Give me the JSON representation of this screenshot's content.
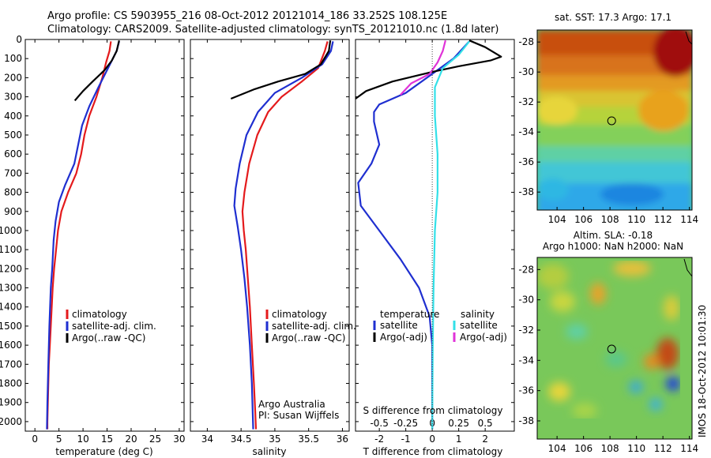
{
  "header": {
    "line1": "Argo profile: CS 5903955_216 08-Oct-2012 20121014_186 33.252S 108.125E",
    "line2": "Climatology: CARS2009. Satellite-adjusted climatology: synTS_20121010.nc (1.8d later)"
  },
  "colors": {
    "climatology": "#e41a1c",
    "satellite": "#1f2fd0",
    "argo": "#000000",
    "sal_sat": "#33e0e8",
    "sal_argo": "#e033d8",
    "dotted": "#444444"
  },
  "panels": {
    "temperature": {
      "xlabel": "temperature (deg C)",
      "legend": [
        "climatology",
        "satellite-adj. clim.",
        "Argo(..raw -QC)"
      ]
    },
    "salinity": {
      "xlabel": "salinity",
      "legend": [
        "climatology",
        "satellite-adj. clim.",
        "Argo(..raw -QC)"
      ],
      "note1": "Argo Australia",
      "note2": "PI: Susan Wijffels"
    },
    "difference": {
      "xlabel_bottom": "T difference from climatology",
      "xlabel_top": "S difference from climatology",
      "legend_temp_title": "temperature",
      "legend_sal_title": "salinity",
      "legend_temp": [
        "satellite",
        "Argo(-adj)"
      ],
      "legend_sal": [
        "satellite",
        "Argo(-adj)"
      ]
    }
  },
  "maps": {
    "sst_title": "sat. SST: 17.3 Argo: 17.1",
    "sla_title1": "Altim. SLA: -0.18",
    "sla_title2": "Argo h1000: NaN h2000: NaN",
    "timestamp": "IMOS 18-Oct-2012 10:01:30",
    "lon_ticks": [
      "104",
      "106",
      "108",
      "110",
      "112",
      "114"
    ],
    "lat_ticks": [
      "-28",
      "-30",
      "-32",
      "-34",
      "-36",
      "-38"
    ],
    "profile_lon": 108.125,
    "profile_lat": -33.252
  },
  "chart_data": [
    {
      "type": "line",
      "name": "temperature",
      "xlabel": "temperature (deg C)",
      "ylabel": "",
      "xlim": [
        -2,
        31
      ],
      "ylim": [
        2050,
        0
      ],
      "x_ticks": [
        0,
        5,
        10,
        15,
        20,
        25,
        30
      ],
      "y_ticks": [
        0,
        100,
        200,
        300,
        400,
        500,
        600,
        700,
        800,
        900,
        1000,
        1100,
        1200,
        1300,
        1400,
        1500,
        1600,
        1700,
        1800,
        1900,
        2000
      ],
      "legend": [
        "climatology",
        "satellite-adj. clim.",
        "Argo(..raw -QC)"
      ],
      "series": [
        {
          "name": "climatology",
          "color": "#e41a1c",
          "points": [
            [
              15.8,
              10
            ],
            [
              15.5,
              60
            ],
            [
              14.8,
              120
            ],
            [
              14.0,
              200
            ],
            [
              12.8,
              300
            ],
            [
              11.3,
              400
            ],
            [
              10.3,
              500
            ],
            [
              9.6,
              600
            ],
            [
              8.6,
              700
            ],
            [
              6.9,
              800
            ],
            [
              5.5,
              900
            ],
            [
              4.8,
              1000
            ],
            [
              4.4,
              1100
            ],
            [
              4.0,
              1200
            ],
            [
              3.7,
              1300
            ],
            [
              3.5,
              1400
            ],
            [
              3.3,
              1500
            ],
            [
              3.1,
              1600
            ],
            [
              2.9,
              1700
            ],
            [
              2.8,
              1800
            ],
            [
              2.7,
              1900
            ],
            [
              2.6,
              2000
            ],
            [
              2.6,
              2040
            ]
          ]
        },
        {
          "name": "satellite-adj. clim.",
          "color": "#1f2fd0",
          "points": [
            [
              17.5,
              10
            ],
            [
              17.0,
              60
            ],
            [
              15.2,
              150
            ],
            [
              13.2,
              250
            ],
            [
              11.3,
              350
            ],
            [
              9.8,
              450
            ],
            [
              9.0,
              550
            ],
            [
              8.2,
              650
            ],
            [
              6.3,
              760
            ],
            [
              5.0,
              850
            ],
            [
              4.3,
              950
            ],
            [
              3.9,
              1050
            ],
            [
              3.6,
              1200
            ],
            [
              3.3,
              1300
            ],
            [
              3.0,
              1500
            ],
            [
              2.8,
              1700
            ],
            [
              2.6,
              1900
            ],
            [
              2.5,
              2040
            ]
          ]
        },
        {
          "name": "Argo(..raw -QC)",
          "color": "#000000",
          "points": [
            [
              17.5,
              5
            ],
            [
              17.0,
              60
            ],
            [
              16.0,
              110
            ],
            [
              14.5,
              160
            ],
            [
              12.0,
              220
            ],
            [
              10.0,
              270
            ],
            [
              8.3,
              320
            ]
          ]
        }
      ]
    },
    {
      "type": "line",
      "name": "salinity",
      "xlabel": "salinity",
      "ylabel": "",
      "xlim": [
        33.75,
        36.1
      ],
      "ylim": [
        2050,
        0
      ],
      "x_ticks": [
        34,
        34.5,
        35,
        35.5,
        36
      ],
      "legend": [
        "climatology",
        "satellite-adj. clim.",
        "Argo(..raw -QC)"
      ],
      "series": [
        {
          "name": "climatology",
          "color": "#e41a1c",
          "points": [
            [
              35.78,
              10
            ],
            [
              35.74,
              60
            ],
            [
              35.64,
              150
            ],
            [
              35.4,
              220
            ],
            [
              35.1,
              300
            ],
            [
              34.9,
              380
            ],
            [
              34.74,
              500
            ],
            [
              34.62,
              650
            ],
            [
              34.55,
              800
            ],
            [
              34.52,
              900
            ],
            [
              34.54,
              1000
            ],
            [
              34.57,
              1100
            ],
            [
              34.6,
              1250
            ],
            [
              34.63,
              1400
            ],
            [
              34.66,
              1600
            ],
            [
              34.69,
              1800
            ],
            [
              34.71,
              1950
            ],
            [
              34.72,
              2040
            ]
          ]
        },
        {
          "name": "satellite-adj. clim.",
          "color": "#1f2fd0",
          "points": [
            [
              35.86,
              10
            ],
            [
              35.83,
              60
            ],
            [
              35.7,
              130
            ],
            [
              35.4,
              200
            ],
            [
              35.0,
              280
            ],
            [
              34.75,
              380
            ],
            [
              34.58,
              500
            ],
            [
              34.48,
              650
            ],
            [
              34.42,
              780
            ],
            [
              34.4,
              870
            ],
            [
              34.45,
              980
            ],
            [
              34.5,
              1100
            ],
            [
              34.55,
              1250
            ],
            [
              34.59,
              1400
            ],
            [
              34.63,
              1600
            ],
            [
              34.66,
              1800
            ],
            [
              34.68,
              2040
            ]
          ]
        },
        {
          "name": "Argo(..raw -QC)",
          "color": "#000000",
          "points": [
            [
              35.82,
              5
            ],
            [
              35.8,
              60
            ],
            [
              35.68,
              130
            ],
            [
              35.45,
              180
            ],
            [
              35.05,
              220
            ],
            [
              34.7,
              260
            ],
            [
              34.35,
              310
            ]
          ]
        }
      ]
    },
    {
      "type": "line",
      "name": "difference",
      "xlabel": "T difference from climatology",
      "xlabel_top": "S difference from climatology",
      "xlim": [
        -2.9,
        3.1
      ],
      "ylim": [
        2050,
        0
      ],
      "x_ticks_bottom": [
        -2,
        -1,
        0,
        1,
        2
      ],
      "x_ticks_top": [
        "-0.5",
        "-0.25",
        "0",
        "0.25",
        "0.5"
      ],
      "legend": [
        "satellite",
        "Argo(-adj)",
        "satellite",
        "Argo(-adj)"
      ],
      "series": [
        {
          "name": "temperature satellite",
          "color": "#1f2fd0",
          "points": [
            [
              1.4,
              10
            ],
            [
              0.8,
              100
            ],
            [
              -0.2,
              200
            ],
            [
              -1.0,
              280
            ],
            [
              -2.0,
              340
            ],
            [
              -2.2,
              380
            ],
            [
              -2.2,
              430
            ],
            [
              -2.0,
              550
            ],
            [
              -2.3,
              650
            ],
            [
              -2.8,
              750
            ],
            [
              -2.7,
              870
            ],
            [
              -2.0,
              1000
            ],
            [
              -1.2,
              1150
            ],
            [
              -0.5,
              1300
            ],
            [
              -0.1,
              1450
            ],
            [
              0.0,
              1600
            ],
            [
              0.0,
              2040
            ]
          ]
        },
        {
          "name": "temperature Argo(-adj)",
          "color": "#000000",
          "points": [
            [
              1.4,
              5
            ],
            [
              2.0,
              40
            ],
            [
              2.6,
              90
            ],
            [
              2.2,
              110
            ],
            [
              1.0,
              140
            ],
            [
              0.0,
              170
            ],
            [
              -1.5,
              220
            ],
            [
              -2.5,
              270
            ],
            [
              -2.9,
              310
            ]
          ]
        },
        {
          "name": "salinity satellite",
          "color": "#33e0e8",
          "points": [
            [
              1.4,
              10
            ],
            [
              1.0,
              80
            ],
            [
              0.4,
              150
            ],
            [
              0.1,
              250
            ],
            [
              0.1,
              400
            ],
            [
              0.2,
              600
            ],
            [
              0.2,
              800
            ],
            [
              0.1,
              1000
            ],
            [
              0.05,
              1300
            ],
            [
              0.02,
              1600
            ],
            [
              0.0,
              2040
            ]
          ]
        },
        {
          "name": "salinity Argo(-adj)",
          "color": "#e033d8",
          "points": [
            [
              0.5,
              5
            ],
            [
              0.4,
              60
            ],
            [
              0.2,
              120
            ],
            [
              -0.1,
              180
            ],
            [
              -0.8,
              230
            ],
            [
              -1.2,
              290
            ]
          ]
        }
      ]
    },
    {
      "type": "heatmap",
      "name": "satellite SST map",
      "title": "sat. SST: 17.3 Argo: 17.1",
      "xlim": [
        102.5,
        114.2
      ],
      "ylim": [
        -39.2,
        -27.2
      ],
      "x_ticks": [
        104,
        106,
        108,
        110,
        112,
        114
      ],
      "y_ticks": [
        -28,
        -30,
        -32,
        -34,
        -36,
        -38
      ]
    },
    {
      "type": "heatmap",
      "name": "altimetry SLA map",
      "title": "Altim. SLA: -0.18",
      "subtitle": "Argo h1000: NaN h2000: NaN",
      "xlim": [
        102.5,
        114.2
      ],
      "ylim": [
        -39.2,
        -27.2
      ],
      "x_ticks": [
        104,
        106,
        108,
        110,
        112,
        114
      ],
      "y_ticks": [
        -28,
        -30,
        -32,
        -34,
        -36,
        -38
      ]
    }
  ]
}
